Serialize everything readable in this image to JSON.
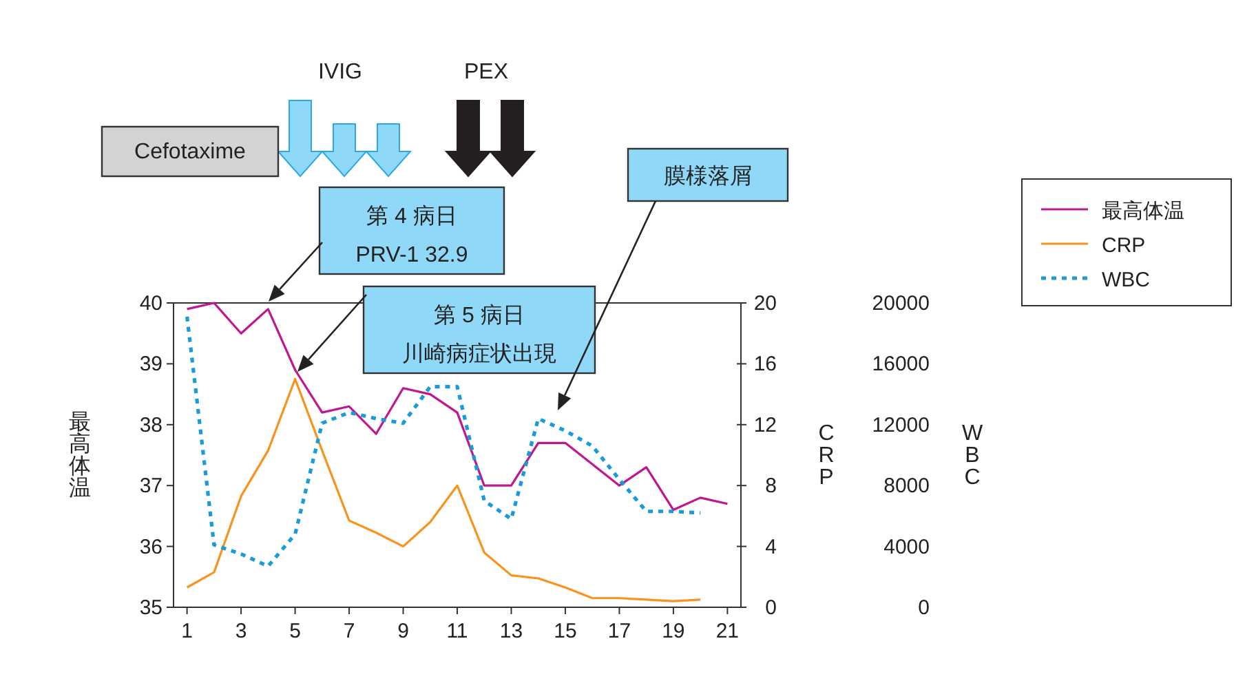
{
  "chart_data": {
    "type": "line",
    "x": [
      1,
      2,
      3,
      4,
      5,
      6,
      7,
      8,
      9,
      10,
      11,
      12,
      13,
      14,
      15,
      16,
      17,
      18,
      19,
      20,
      21
    ],
    "xlim": [
      0.5,
      21.5
    ],
    "xticks": [
      1,
      3,
      5,
      7,
      9,
      11,
      13,
      15,
      17,
      19,
      21
    ],
    "ylabel": "最高体温",
    "y2label": "CRP",
    "y3label": "WBC",
    "ylim": [
      35,
      40
    ],
    "yticks": [
      35,
      36,
      37,
      38,
      39,
      40
    ],
    "y2lim": [
      0,
      20
    ],
    "y2ticks": [
      0,
      4,
      8,
      12,
      16,
      20
    ],
    "y3lim": [
      0,
      20000
    ],
    "y3ticks": [
      0,
      4000,
      8000,
      12000,
      16000,
      20000
    ],
    "series": [
      {
        "name": "最高体温",
        "color": "#c0168f",
        "line_style": "solid",
        "values": [
          39.9,
          40.0,
          39.5,
          39.9,
          38.9,
          38.2,
          38.3,
          37.85,
          38.6,
          38.5,
          38.2,
          37.0,
          37.0,
          37.7,
          37.7,
          37.35,
          37.0,
          37.3,
          36.6,
          36.8,
          36.7
        ]
      },
      {
        "name": "CRP",
        "color": "#f7931e",
        "axis": "y2",
        "line_style": "solid",
        "values": [
          1.3,
          2.3,
          7.3,
          10.3,
          15.0,
          10.3,
          5.7,
          4.9,
          4.0,
          5.6,
          8.0,
          3.6,
          2.1,
          1.9,
          1.3,
          0.6,
          0.6,
          0.5,
          0.4,
          0.5,
          null
        ]
      },
      {
        "name": "WBC",
        "color": "#1a9ad6",
        "axis": "y3",
        "line_style": "dotted",
        "values": [
          19100,
          4100,
          3500,
          2700,
          4800,
          12100,
          12800,
          12400,
          12100,
          14500,
          14500,
          7000,
          5800,
          12400,
          11600,
          10600,
          8400,
          6300,
          6300,
          6200,
          null
        ]
      }
    ],
    "annotations": [
      "Cefotaxime",
      "IVIG",
      "PEX",
      "第 4 病日",
      "PRV-1 32.9",
      "第 5 病日",
      "川崎病症状出現",
      "膜様落屑"
    ],
    "legend": "top right",
    "grid": false,
    "marker": "none"
  }
}
